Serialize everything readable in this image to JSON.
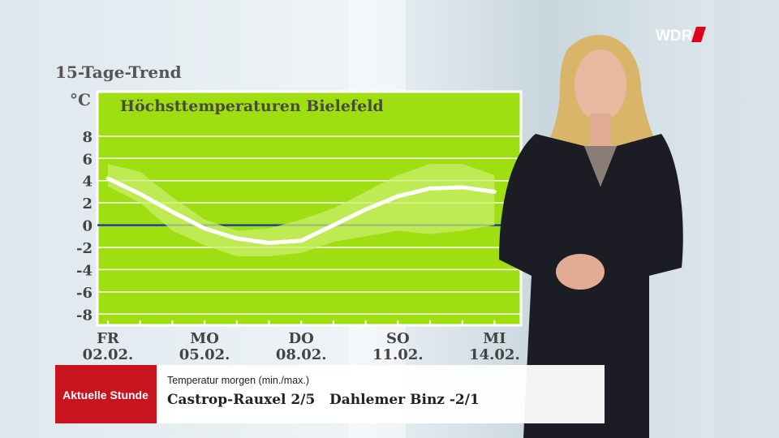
{
  "chart_data": {
    "type": "line",
    "header": "15-Tage-Trend",
    "title": "Höchsttemperaturen Bielefeld",
    "y_label": "°C",
    "weekdays": [
      "FR",
      null,
      null,
      "MO",
      null,
      null,
      "DO",
      null,
      null,
      "SO",
      null,
      null,
      "MI"
    ],
    "categories": [
      "02.02.",
      null,
      null,
      "05.02.",
      null,
      null,
      "08.02.",
      null,
      null,
      "11.02.",
      null,
      null,
      "14.02."
    ],
    "values": [
      4.2,
      2.8,
      1.2,
      -0.3,
      -1.2,
      -1.6,
      -1.4,
      0,
      1.4,
      2.6,
      3.3,
      3.4,
      3.0
    ],
    "color": "#ffffff",
    "band": {
      "low": [
        3.5,
        2.0,
        -0.5,
        -1.8,
        -2.8,
        -2.8,
        -2.5,
        -1.5,
        -1.0,
        -0.5,
        -0.8,
        -0.5,
        0
      ],
      "high": [
        5.5,
        4.8,
        2.5,
        0.5,
        -0.5,
        -0.3,
        0.5,
        1.5,
        3.0,
        4.5,
        5.5,
        5.5,
        4.5
      ],
      "color": "#c8ef6a"
    },
    "ylim": [
      -9,
      12
    ],
    "yticks": [
      8,
      6,
      4,
      2,
      0,
      -2,
      -4,
      -6,
      -8
    ],
    "grid": true,
    "zero_line_color": "#1d3fa0",
    "background": "#9fdf12"
  },
  "overlay": {
    "broadcaster": "WDR",
    "program": "Aktuelle Stunde",
    "caption": "Temperatur morgen (min./max.)",
    "ticker": "Castrop-Rauxel 2/5   Dahlemer Binz -2/1"
  }
}
